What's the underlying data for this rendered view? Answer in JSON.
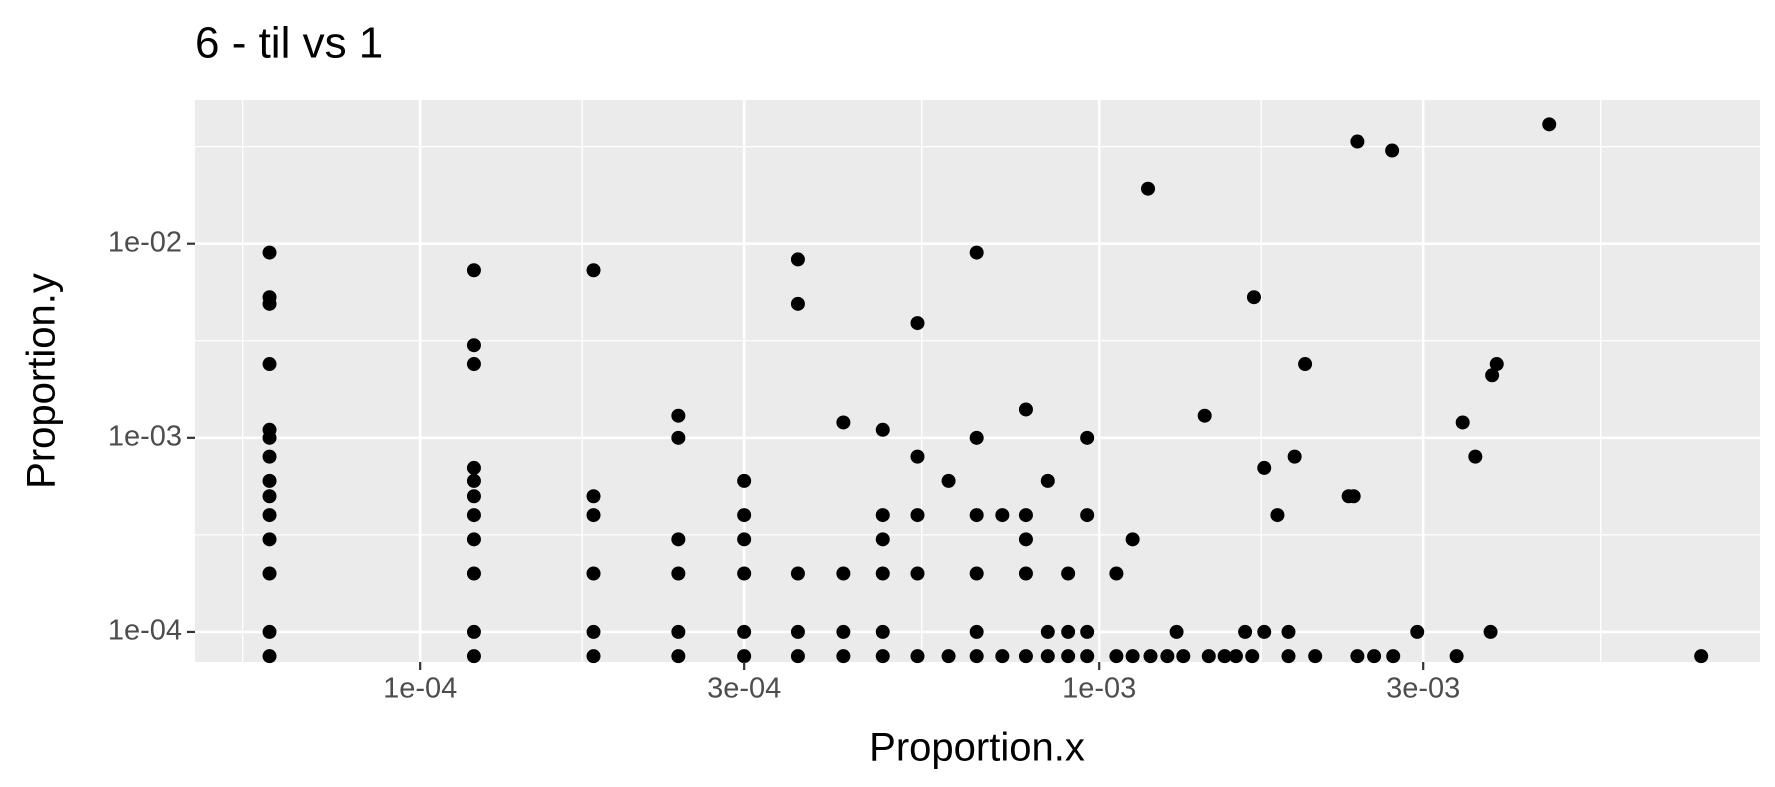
{
  "chart_data": {
    "type": "scatter",
    "title": "6 - til vs 1",
    "x_label": "Proportion.x",
    "y_label": "Proportion.y",
    "xlog": true,
    "ylog": true,
    "grid": true,
    "color": "#000000",
    "xlim": [
      4.66e-05,
      0.0094
    ],
    "ylim": [
      7e-05,
      0.055
    ],
    "xticks": [
      {
        "value": 0.0001,
        "label": "1e-04"
      },
      {
        "value": 0.0003,
        "label": "3e-04"
      },
      {
        "value": 0.001,
        "label": "1e-03"
      },
      {
        "value": 0.003,
        "label": "3e-03"
      }
    ],
    "yticks": [
      {
        "value": 0.0001,
        "label": "1e-04"
      },
      {
        "value": 0.001,
        "label": "1e-03"
      },
      {
        "value": 0.01,
        "label": "1e-02"
      }
    ],
    "x": [
      6e-05,
      6e-05,
      6e-05,
      6e-05,
      6e-05,
      6e-05,
      6e-05,
      6e-05,
      6e-05,
      6e-05,
      6e-05,
      6e-05,
      6e-05,
      6e-05,
      0.00012,
      0.00012,
      0.00012,
      0.00012,
      0.00012,
      0.00012,
      0.00012,
      0.00012,
      0.00012,
      0.00012,
      0.00012,
      0.00018,
      0.00018,
      0.00018,
      0.00018,
      0.00018,
      0.00018,
      0.00024,
      0.00024,
      0.00024,
      0.00024,
      0.00024,
      0.00024,
      0.0003,
      0.0003,
      0.0003,
      0.0003,
      0.0003,
      0.0003,
      0.00036,
      0.00036,
      0.00036,
      0.00036,
      0.00036,
      0.00042,
      0.00042,
      0.00042,
      0.00042,
      0.00048,
      0.00048,
      0.00048,
      0.00048,
      0.00048,
      0.00048,
      0.00054,
      0.00054,
      0.00054,
      0.00054,
      0.00054,
      0.0006,
      0.0006,
      0.00066,
      0.00066,
      0.00066,
      0.00066,
      0.00066,
      0.00066,
      0.00072,
      0.00072,
      0.00078,
      0.00078,
      0.00078,
      0.00078,
      0.00078,
      0.00084,
      0.00084,
      0.00084,
      0.0009,
      0.0009,
      0.0009,
      0.00096,
      0.00096,
      0.00096,
      0.00096,
      0.00106,
      0.00112,
      0.00118,
      0.0013,
      0.00143,
      0.00169,
      0.00175,
      0.00183,
      0.00164,
      0.00175,
      0.0019,
      0.00194,
      0.00201,
      0.00233,
      0.00237,
      0.0024,
      0.0027,
      0.00294,
      0.00343,
      0.00358,
      0.00377,
      0.00379,
      0.00385,
      0.0046,
      0.0077,
      0.00106,
      0.00112,
      0.00119,
      0.00126,
      0.00133,
      0.00145,
      0.00153,
      0.00159,
      0.00168,
      0.0019,
      0.00208,
      0.0024,
      0.00254,
      0.00271,
      0.00336
    ],
    "values": [
      0.009,
      0.0053,
      0.0049,
      0.0024,
      0.0011,
      0.001,
      0.0008,
      0.0006,
      0.0005,
      0.0004,
      0.0003,
      0.0002,
      0.0001,
      7.5e-05,
      0.0073,
      0.003,
      0.0024,
      0.0007,
      0.0006,
      0.0005,
      0.0004,
      0.0003,
      0.0002,
      0.0001,
      7.5e-05,
      0.0073,
      0.0005,
      0.0004,
      0.0002,
      0.0001,
      7.5e-05,
      0.0013,
      0.001,
      0.0003,
      0.0002,
      0.0001,
      7.5e-05,
      0.0006,
      0.0004,
      0.0003,
      0.0002,
      0.0001,
      7.5e-05,
      0.0083,
      0.0049,
      0.0002,
      0.0001,
      7.5e-05,
      0.0012,
      0.0002,
      0.0001,
      7.5e-05,
      0.0011,
      0.0004,
      0.0003,
      0.0002,
      0.0001,
      7.5e-05,
      0.0039,
      0.0008,
      0.0004,
      0.0002,
      7.5e-05,
      0.0006,
      7.5e-05,
      0.009,
      0.001,
      0.0004,
      0.0002,
      0.0001,
      7.5e-05,
      0.0004,
      7.5e-05,
      0.0014,
      0.0004,
      0.0003,
      0.0002,
      7.5e-05,
      0.0006,
      0.0001,
      7.5e-05,
      0.0002,
      0.0001,
      7.5e-05,
      0.001,
      0.0004,
      0.0001,
      7.5e-05,
      0.0002,
      0.0003,
      0.0192,
      0.0001,
      0.0013,
      0.0053,
      0.0007,
      0.0004,
      0.0001,
      0.0001,
      0.0001,
      0.0008,
      0.0024,
      0.0005,
      0.0005,
      0.0336,
      0.0302,
      0.0001,
      0.0012,
      0.0008,
      0.0001,
      0.0021,
      0.0024,
      0.0412,
      7.5e-05,
      7.5e-05,
      7.5e-05,
      7.5e-05,
      7.5e-05,
      7.5e-05,
      7.5e-05,
      7.5e-05,
      7.5e-05,
      7.5e-05,
      7.5e-05,
      7.5e-05,
      7.5e-05,
      7.5e-05,
      7.5e-05,
      7.5e-05
    ]
  }
}
